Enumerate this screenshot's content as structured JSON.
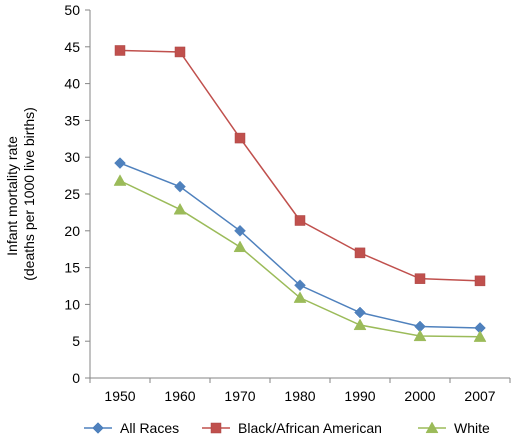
{
  "chart_data": {
    "type": "line",
    "categories": [
      "1950",
      "1960",
      "1970",
      "1980",
      "1990",
      "2000",
      "2007"
    ],
    "ylabel_lines": [
      "Infant mortality rate",
      "(deaths per 1000 live births)"
    ],
    "xlabel": "",
    "ylim": [
      0,
      50
    ],
    "yticks": [
      "0",
      "5",
      "10",
      "15",
      "20",
      "25",
      "30",
      "35",
      "40",
      "45",
      "50"
    ],
    "grid": false,
    "legend_position": "bottom",
    "series": [
      {
        "name": "All Races",
        "values": [
          29.2,
          26.0,
          20.0,
          12.6,
          8.9,
          7.0,
          6.8
        ],
        "color": "#4f81bd",
        "marker": "diamond"
      },
      {
        "name": "Black/African American",
        "values": [
          44.5,
          44.3,
          32.6,
          21.4,
          17.0,
          13.5,
          13.2
        ],
        "color": "#c0504d",
        "marker": "square"
      },
      {
        "name": "White",
        "values": [
          26.8,
          22.9,
          17.8,
          10.9,
          7.2,
          5.7,
          5.6
        ],
        "color": "#9bbb59",
        "marker": "triangle"
      }
    ]
  }
}
